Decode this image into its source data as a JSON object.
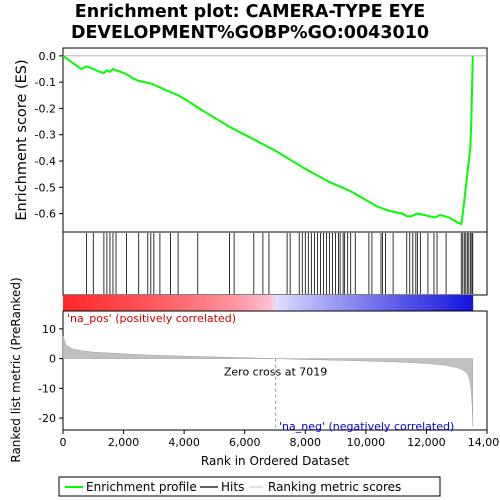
{
  "chart_data": {
    "type": "line",
    "title_line1": "Enrichment plot: CAMERA-TYPE EYE",
    "title_line2": "DEVELOPMENT%GOBP%GO:0043010",
    "es_panel": {
      "ylabel": "Enrichment score (ES)",
      "ylim": [
        -0.67,
        0.03
      ],
      "yticks": [
        0.0,
        -0.1,
        -0.2,
        -0.3,
        -0.4,
        -0.5,
        -0.6
      ],
      "ytick_labels": [
        "0.0",
        "-0.1",
        "-0.2",
        "-0.3",
        "-0.4",
        "-0.5",
        "-0.6"
      ],
      "line_color": "#00ff00",
      "series": [
        {
          "x": [
            0,
            300,
            600,
            780,
            1000,
            1200,
            1350,
            1450,
            1550,
            1650,
            1750,
            1900,
            2100,
            2300,
            2500,
            2700,
            2900,
            3000,
            3200,
            3500,
            3800,
            4100,
            4500,
            5000,
            5500,
            6000,
            6500,
            7000,
            7500,
            8000,
            8400,
            8800,
            9200,
            9500,
            9800,
            10100,
            10400,
            10550,
            10650,
            10800,
            11000,
            11200,
            11350,
            11500,
            11700,
            11900,
            12100,
            12300,
            12450,
            12600,
            12750,
            12900,
            13050,
            13150,
            13200,
            13250,
            13300,
            13350,
            13400,
            13450,
            13480,
            13500,
            13520,
            13530
          ],
          "y": [
            0.0,
            -0.025,
            -0.05,
            -0.04,
            -0.05,
            -0.06,
            -0.065,
            -0.055,
            -0.06,
            -0.05,
            -0.055,
            -0.06,
            -0.07,
            -0.085,
            -0.095,
            -0.1,
            -0.105,
            -0.11,
            -0.12,
            -0.135,
            -0.15,
            -0.17,
            -0.2,
            -0.235,
            -0.27,
            -0.3,
            -0.33,
            -0.36,
            -0.395,
            -0.43,
            -0.455,
            -0.48,
            -0.5,
            -0.515,
            -0.535,
            -0.555,
            -0.575,
            -0.58,
            -0.585,
            -0.59,
            -0.595,
            -0.6,
            -0.61,
            -0.61,
            -0.6,
            -0.605,
            -0.61,
            -0.615,
            -0.605,
            -0.61,
            -0.615,
            -0.625,
            -0.635,
            -0.64,
            -0.6,
            -0.55,
            -0.5,
            -0.45,
            -0.4,
            -0.35,
            -0.25,
            -0.15,
            -0.05,
            0.0
          ]
        }
      ]
    },
    "hits": [
      780,
      1000,
      1350,
      1450,
      1550,
      1650,
      1750,
      2100,
      2500,
      2800,
      2900,
      3000,
      3200,
      3550,
      3800,
      4450,
      5500,
      5650,
      6300,
      6600,
      6800,
      7400,
      7500,
      7800,
      7900,
      8000,
      8100,
      8200,
      8300,
      8400,
      8500,
      8600,
      8700,
      8800,
      8900,
      9000,
      9100,
      9150,
      9250,
      9300,
      9400,
      9500,
      9650,
      10100,
      10200,
      10500,
      10550,
      10650,
      10900,
      11350,
      11450,
      11550,
      11650,
      11700,
      11800,
      12050,
      12250,
      12350,
      12650,
      13150,
      13200,
      13250,
      13300,
      13350,
      13400,
      13450,
      13500,
      13530
    ],
    "heatmap": {
      "left_label": "'na_pos' (positively correlated)",
      "right_label": "'na_neg' (negatively correlated)",
      "left_color": "#ff2020",
      "right_color": "#2020ff"
    },
    "ranked_panel": {
      "ylabel": "Ranked list metric (PreRanked)",
      "xlabel": "Rank in Ordered Dataset",
      "ylim": [
        -24,
        16
      ],
      "yticks": [
        10,
        0,
        -10,
        -20
      ],
      "ytick_labels": [
        "10",
        "0",
        "-10",
        "-20"
      ],
      "xlim": [
        0,
        14000
      ],
      "xticks": [
        0,
        2000,
        4000,
        6000,
        8000,
        10000,
        12000,
        14000
      ],
      "xtick_labels": [
        "0",
        "2,000",
        "4,000",
        "6,000",
        "8,000",
        "10,000",
        "12,000",
        "14,000"
      ],
      "zero_cross": 7019,
      "zero_cross_label": "Zero cross at 7019",
      "n_genes": 13530,
      "metric_profile": [
        [
          0,
          7.5
        ],
        [
          100,
          4.5
        ],
        [
          300,
          3.3
        ],
        [
          600,
          2.7
        ],
        [
          1000,
          2.2
        ],
        [
          2000,
          1.6
        ],
        [
          3000,
          1.15
        ],
        [
          4000,
          0.85
        ],
        [
          5000,
          0.55
        ],
        [
          6000,
          0.3
        ],
        [
          7019,
          0.0
        ],
        [
          8000,
          -0.3
        ],
        [
          9000,
          -0.55
        ],
        [
          10000,
          -0.8
        ],
        [
          11000,
          -1.1
        ],
        [
          12000,
          -1.6
        ],
        [
          12600,
          -2.2
        ],
        [
          13000,
          -3.0
        ],
        [
          13200,
          -3.8
        ],
        [
          13350,
          -5.0
        ],
        [
          13430,
          -7.0
        ],
        [
          13480,
          -11.0
        ],
        [
          13510,
          -16.0
        ],
        [
          13530,
          -23.0
        ]
      ]
    },
    "legend": [
      {
        "label": "Enrichment profile",
        "color": "#00ff00"
      },
      {
        "label": "Hits",
        "color": "#000000"
      },
      {
        "label": "Ranking metric scores",
        "color": "#c0c0c0"
      }
    ]
  }
}
